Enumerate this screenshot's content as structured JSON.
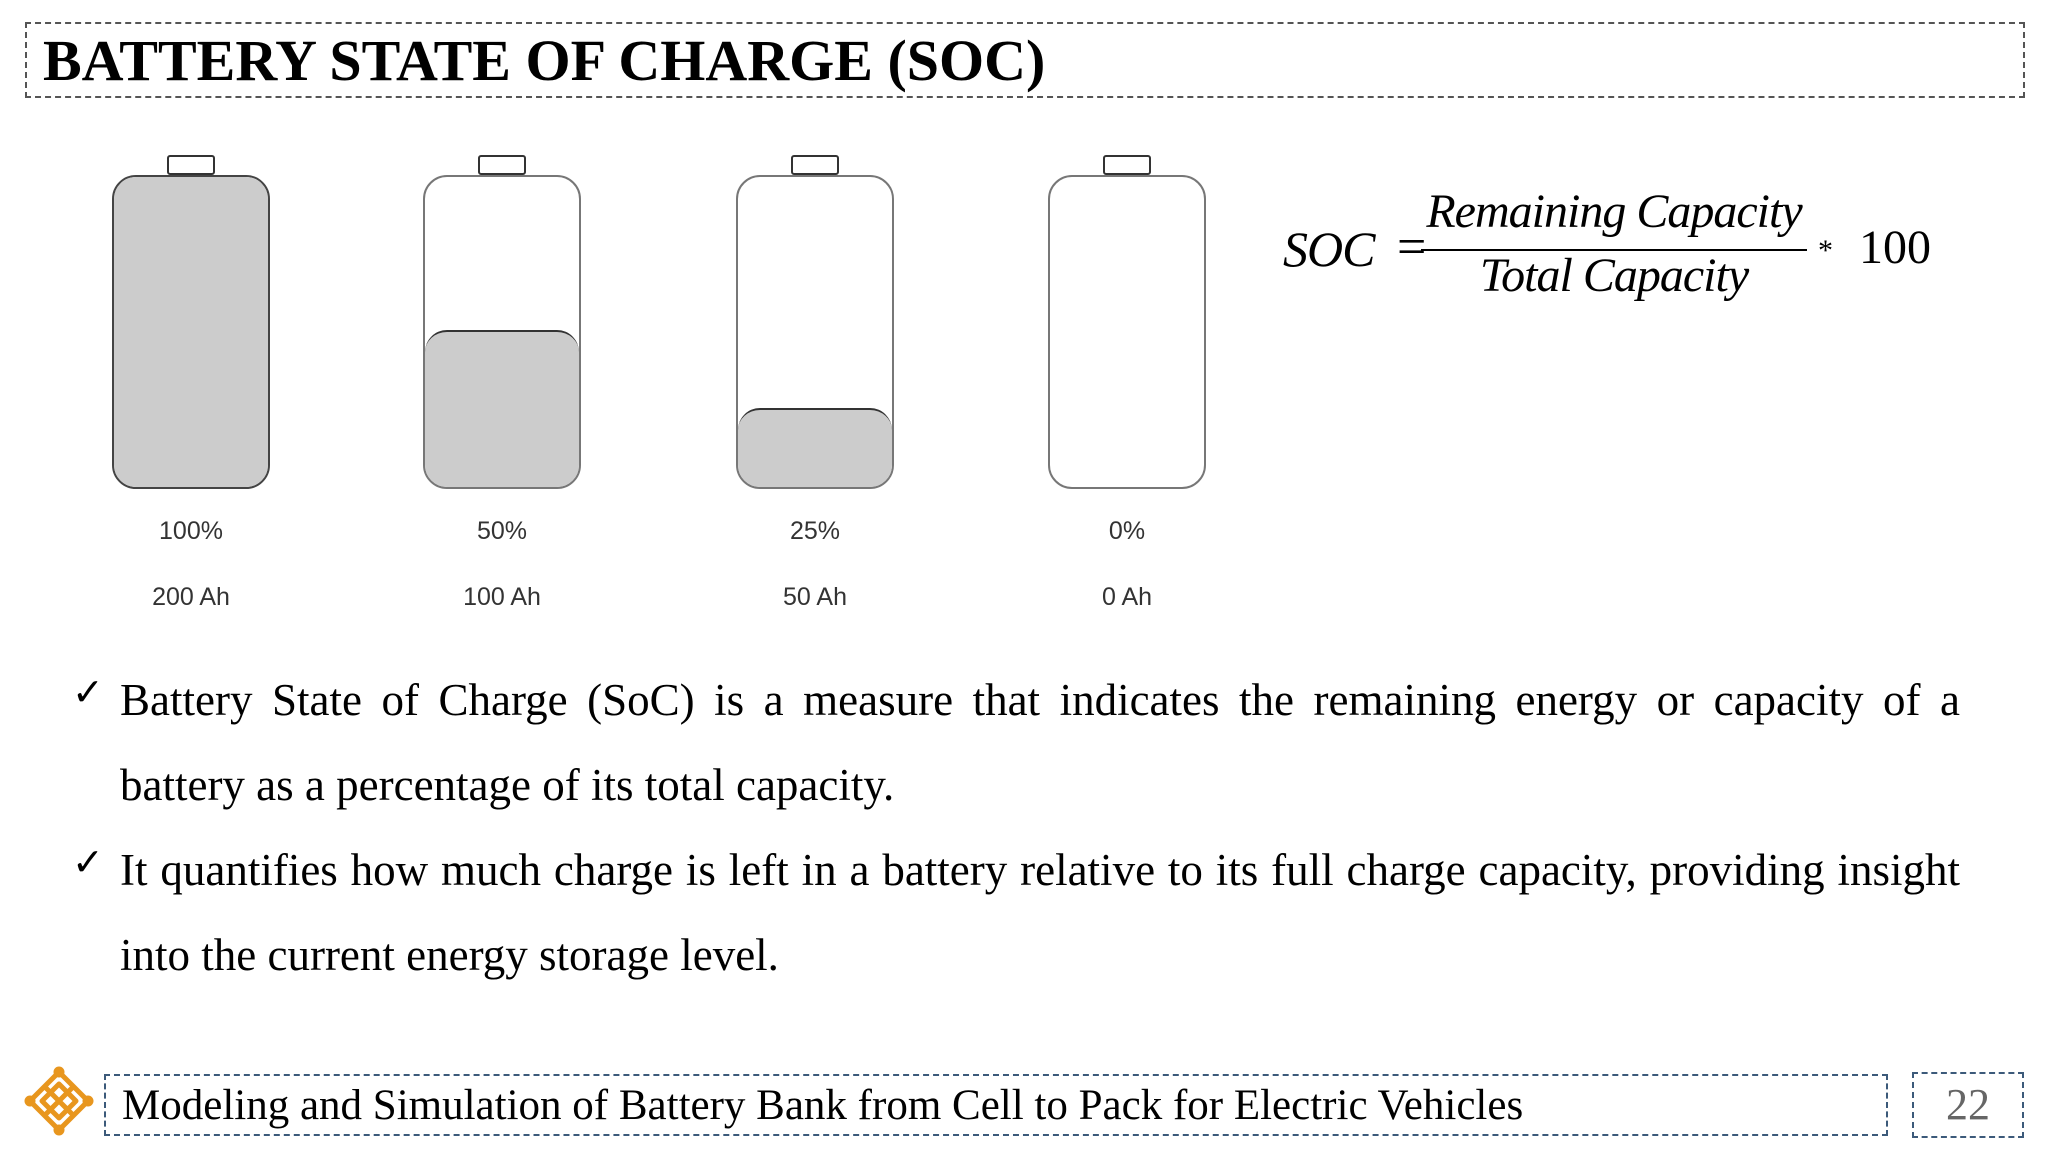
{
  "title": "BATTERY STATE OF CHARGE (SOC)",
  "batteries": [
    {
      "percent_label": "100%",
      "capacity_label": "200 Ah",
      "fill_fraction": 1.0
    },
    {
      "percent_label": "50%",
      "capacity_label": "100 Ah",
      "fill_fraction": 0.5
    },
    {
      "percent_label": "25%",
      "capacity_label": "50 Ah",
      "fill_fraction": 0.25
    },
    {
      "percent_label": "0%",
      "capacity_label": "0 Ah",
      "fill_fraction": 0.0
    }
  ],
  "formula": {
    "lhs": "SOC",
    "equals": "=",
    "numerator": "Remaining Capacity",
    "denominator": "Total Capacity",
    "operator": "*",
    "factor": "100"
  },
  "bullets": [
    "Battery State of Charge (SoC) is a measure that indicates the remaining energy or capacity of a battery as a percentage of its total capacity.",
    "It quantifies how much charge is left in a battery relative to its full charge capacity, providing insight into the current energy storage level."
  ],
  "check_mark": "✓",
  "footer": {
    "text": "Modeling and Simulation of Battery Bank from Cell to Pack for Electric Vehicles",
    "page_number": "22"
  },
  "colors": {
    "battery_fill": "#cccccc",
    "logo": "#e8961e",
    "footer_border": "#3c5a7a"
  },
  "icons": {
    "logo": "endless-knot-icon",
    "bullet": "check-icon"
  }
}
